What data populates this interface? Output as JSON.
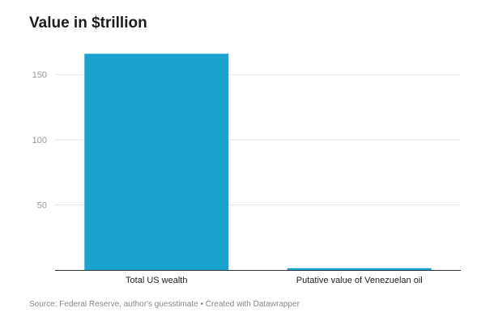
{
  "chart_data": {
    "type": "bar",
    "title": "Value in $trillion",
    "categories": [
      "Total US wealth",
      "Putative value of Venezuelan oil"
    ],
    "values": [
      166,
      1.4
    ],
    "ylim": [
      0,
      170
    ],
    "yticks": [
      50,
      100,
      150
    ],
    "xlabel": "",
    "ylabel": "",
    "grid": true,
    "bar_color": "#1aa1cc",
    "footer": "Source: Federal Reserve, author's guesstimate • Created with Datawrapper"
  }
}
